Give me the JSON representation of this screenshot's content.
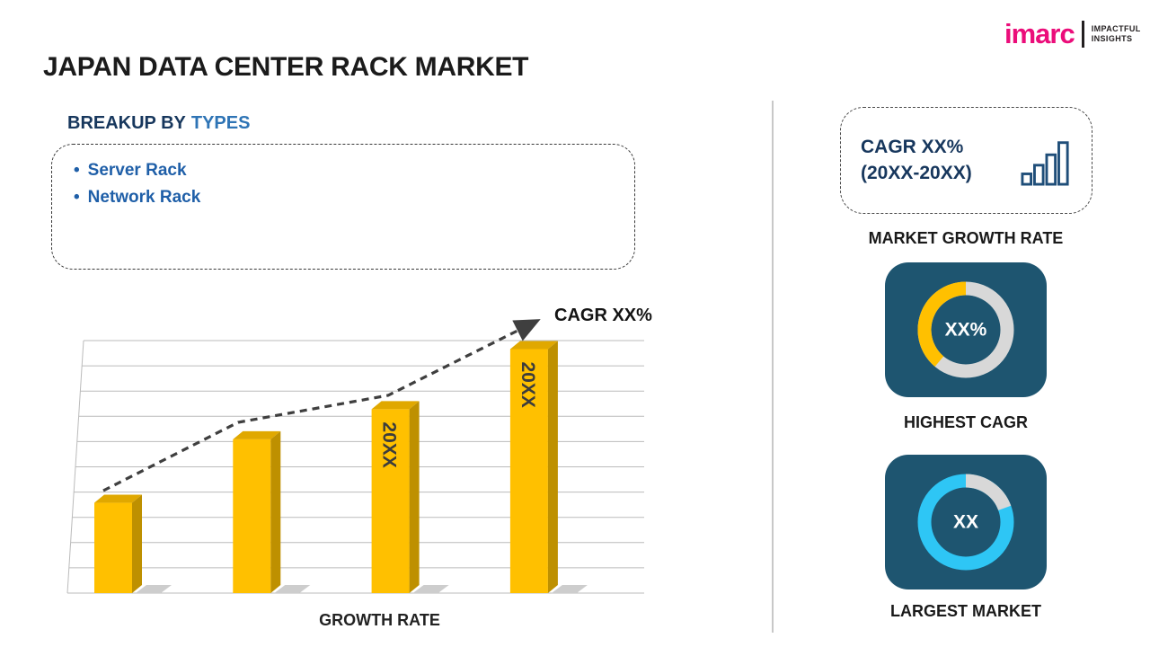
{
  "page": {
    "title": "JAPAN DATA CENTER RACK MARKET"
  },
  "logo": {
    "brand": "imarc",
    "tagline_line1": "IMPACTFUL",
    "tagline_line2": "INSIGHTS"
  },
  "breakup": {
    "heading_prefix": "BREAKUP BY",
    "heading_highlight": "TYPES",
    "bullet": "•",
    "items": [
      "Server Rack",
      "Network Rack"
    ]
  },
  "chart_data": {
    "type": "bar",
    "categories": [
      "",
      "",
      "20XX",
      "20XX"
    ],
    "values": [
      27,
      46,
      55,
      73
    ],
    "title": "",
    "xlabel": "GROWTH RATE",
    "ylabel": "",
    "ylim": [
      0,
      100
    ],
    "grid": "horizontal",
    "annotation": "CAGR XX%",
    "trend_line": "dashed ascending arrow above bars",
    "bar_color": "#FFC000"
  },
  "sidebar": {
    "cagr_box": {
      "line1": "CAGR XX%",
      "line2": "(20XX-20XX)",
      "icon": "bar-chart-icon"
    },
    "market_growth_rate_label": "MARKET GROWTH RATE",
    "highest_cagr": {
      "value": "XX%",
      "label": "HIGHEST CAGR"
    },
    "largest_market": {
      "value": "XX",
      "label": "LARGEST MARKET"
    }
  },
  "colors": {
    "brand_pink": "#EB0D7A",
    "navy_heading": "#17375D",
    "blue_highlight": "#2E74B5",
    "blue_list": "#1F5FA8",
    "gold": "#FFC000",
    "gold_side": "#BE9000",
    "gold_top": "#E0A800",
    "card_bg": "#1E5570",
    "cyan": "#2EC6F5",
    "ring_gray": "#D8D8D8",
    "trend": "#3F3F3F",
    "grid": "#BBBBBB"
  }
}
